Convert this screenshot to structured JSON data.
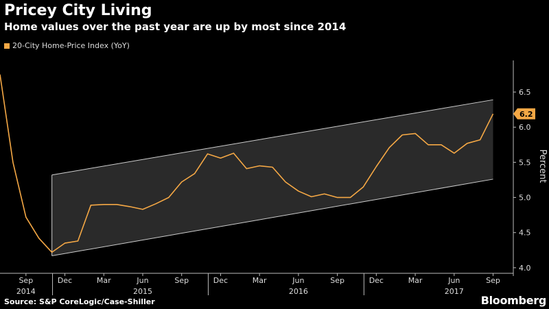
{
  "header": {
    "title": "Pricey City Living",
    "subtitle": "Home values over the past year are up by most since 2014"
  },
  "legend": {
    "label": "20-City Home-Price Index (YoY)"
  },
  "footer": {
    "source": "Source: S&P CoreLogic/Case-Shiller",
    "brand": "Bloomberg"
  },
  "colors": {
    "line": "#f5a845",
    "background": "#000000",
    "channel_fill": "#2a2a2a",
    "channel_border": "#cfcfcf"
  },
  "chart_data": {
    "type": "line",
    "ylabel": "Percent",
    "ylim": [
      3.95,
      6.95
    ],
    "yticks": [
      4.0,
      4.5,
      5.0,
      5.5,
      6.0,
      6.5
    ],
    "ytick_labels": [
      "4.0",
      "4.5",
      "5.0",
      "5.5",
      "6.0",
      "6.5"
    ],
    "y_axis_position": "right",
    "grid": false,
    "legend_position": "top-left",
    "x_month_ticks": [
      {
        "label": "Sep",
        "date": "2014-09"
      },
      {
        "label": "Dec",
        "date": "2014-12"
      },
      {
        "label": "Mar",
        "date": "2015-03"
      },
      {
        "label": "Jun",
        "date": "2015-06"
      },
      {
        "label": "Sep",
        "date": "2015-09"
      },
      {
        "label": "Dec",
        "date": "2015-12"
      },
      {
        "label": "Mar",
        "date": "2016-03"
      },
      {
        "label": "Jun",
        "date": "2016-06"
      },
      {
        "label": "Sep",
        "date": "2016-09"
      },
      {
        "label": "Dec",
        "date": "2016-12"
      },
      {
        "label": "Mar",
        "date": "2017-03"
      },
      {
        "label": "Jun",
        "date": "2017-06"
      },
      {
        "label": "Sep",
        "date": "2017-09"
      }
    ],
    "x_year_labels": [
      {
        "label": "2014",
        "date": "2014-09"
      },
      {
        "label": "2015",
        "date": "2015-06"
      },
      {
        "label": "2016",
        "date": "2016-06"
      },
      {
        "label": "2017",
        "date": "2017-06"
      }
    ],
    "x_year_separators": [
      "2014-12",
      "2015-12",
      "2016-12"
    ],
    "series": [
      {
        "name": "20-City Home-Price Index (YoY)",
        "points": [
          {
            "x": "2014-07",
            "y": 6.75
          },
          {
            "x": "2014-08",
            "y": 5.5
          },
          {
            "x": "2014-09",
            "y": 4.72
          },
          {
            "x": "2014-10",
            "y": 4.42
          },
          {
            "x": "2014-11",
            "y": 4.22
          },
          {
            "x": "2014-12",
            "y": 4.35
          },
          {
            "x": "2015-01",
            "y": 4.38
          },
          {
            "x": "2015-02",
            "y": 4.89
          },
          {
            "x": "2015-03",
            "y": 4.9
          },
          {
            "x": "2015-04",
            "y": 4.9
          },
          {
            "x": "2015-05",
            "y": 4.87
          },
          {
            "x": "2015-06",
            "y": 4.83
          },
          {
            "x": "2015-07",
            "y": 4.91
          },
          {
            "x": "2015-08",
            "y": 5.0
          },
          {
            "x": "2015-09",
            "y": 5.22
          },
          {
            "x": "2015-10",
            "y": 5.34
          },
          {
            "x": "2015-11",
            "y": 5.62
          },
          {
            "x": "2015-12",
            "y": 5.56
          },
          {
            "x": "2016-01",
            "y": 5.63
          },
          {
            "x": "2016-02",
            "y": 5.41
          },
          {
            "x": "2016-03",
            "y": 5.45
          },
          {
            "x": "2016-04",
            "y": 5.43
          },
          {
            "x": "2016-05",
            "y": 5.22
          },
          {
            "x": "2016-06",
            "y": 5.09
          },
          {
            "x": "2016-07",
            "y": 5.01
          },
          {
            "x": "2016-08",
            "y": 5.05
          },
          {
            "x": "2016-09",
            "y": 5.0
          },
          {
            "x": "2016-10",
            "y": 5.0
          },
          {
            "x": "2016-11",
            "y": 5.15
          },
          {
            "x": "2016-12",
            "y": 5.44
          },
          {
            "x": "2017-01",
            "y": 5.71
          },
          {
            "x": "2017-02",
            "y": 5.89
          },
          {
            "x": "2017-03",
            "y": 5.91
          },
          {
            "x": "2017-04",
            "y": 5.75
          },
          {
            "x": "2017-05",
            "y": 5.75
          },
          {
            "x": "2017-06",
            "y": 5.63
          },
          {
            "x": "2017-07",
            "y": 5.77
          },
          {
            "x": "2017-08",
            "y": 5.82
          },
          {
            "x": "2017-09",
            "y": 6.19
          }
        ]
      }
    ],
    "channel": {
      "start": "2014-11",
      "end": "2017-09",
      "upper": [
        5.32,
        6.39
      ],
      "lower": [
        4.17,
        5.26
      ]
    },
    "last_value_label": "6.2"
  }
}
